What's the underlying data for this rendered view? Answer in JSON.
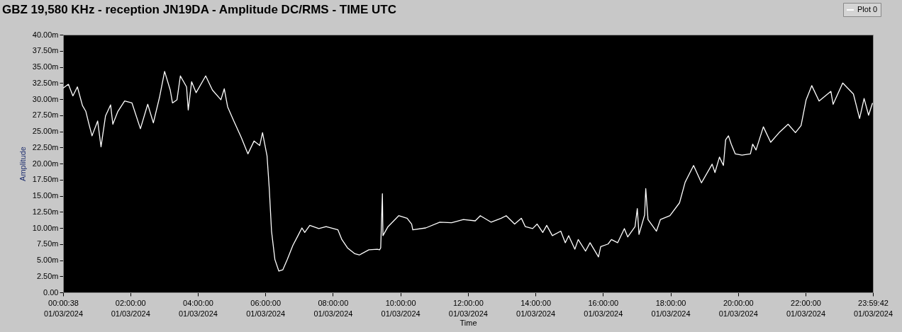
{
  "chart_data": {
    "type": "line",
    "title": "GBZ  19,580 KHz - reception JN19DA -  Amplitude DC/RMS   - TIME UTC",
    "xlabel": "Time",
    "ylabel": "Amplitude",
    "x": [
      "2024-03-01T00:00:38",
      "2024-03-01T00:10",
      "2024-03-01T00:18",
      "2024-03-01T00:26",
      "2024-03-01T00:35",
      "2024-03-01T00:41",
      "2024-03-01T00:46",
      "2024-03-01T00:52",
      "2024-03-01T01:02",
      "2024-03-01T01:08",
      "2024-03-01T01:16",
      "2024-03-01T01:25",
      "2024-03-01T01:29",
      "2024-03-01T01:38",
      "2024-03-01T01:50",
      "2024-03-01T02:03",
      "2024-03-01T02:18",
      "2024-03-01T02:31",
      "2024-03-01T02:41",
      "2024-03-01T02:52",
      "2024-03-01T03:01",
      "2024-03-01T03:11",
      "2024-03-01T03:15",
      "2024-03-01T03:23",
      "2024-03-01T03:29",
      "2024-03-01T03:40",
      "2024-03-01T03:43",
      "2024-03-01T03:49",
      "2024-03-01T03:57",
      "2024-03-01T04:14",
      "2024-03-01T04:26",
      "2024-03-01T04:41",
      "2024-03-01T04:47",
      "2024-03-01T04:53",
      "2024-03-01T05:04",
      "2024-03-01T05:17",
      "2024-03-01T05:29",
      "2024-03-01T05:40",
      "2024-03-01T05:50",
      "2024-03-01T05:55",
      "2024-03-01T06:03",
      "2024-03-01T06:07",
      "2024-03-01T06:11",
      "2024-03-01T06:17",
      "2024-03-01T06:24",
      "2024-03-01T06:31",
      "2024-03-01T06:39",
      "2024-03-01T06:49",
      "2024-03-01T06:58",
      "2024-03-01T07:05",
      "2024-03-01T07:10",
      "2024-03-01T07:19",
      "2024-03-01T07:35",
      "2024-03-01T07:48",
      "2024-03-01T08:09",
      "2024-03-01T08:16",
      "2024-03-01T08:26",
      "2024-03-01T08:39",
      "2024-03-01T08:47",
      "2024-03-01T09:04",
      "2024-03-01T09:19",
      "2024-03-01T09:23",
      "2024-03-01T09:25",
      "2024-03-01T09:28",
      "2024-03-01T09:29",
      "2024-03-01T09:38",
      "2024-03-01T09:57",
      "2024-03-01T10:12",
      "2024-03-01T10:20",
      "2024-03-01T10:22",
      "2024-03-01T10:45",
      "2024-03-01T11:10",
      "2024-03-01T11:31",
      "2024-03-01T11:52",
      "2024-03-01T12:13",
      "2024-03-01T12:22",
      "2024-03-01T12:41",
      "2024-03-01T12:59",
      "2024-03-01T13:08",
      "2024-03-01T13:23",
      "2024-03-01T13:35",
      "2024-03-01T13:42",
      "2024-03-01T13:55",
      "2024-03-01T14:03",
      "2024-03-01T14:13",
      "2024-03-01T14:20",
      "2024-03-01T14:30",
      "2024-03-01T14:45",
      "2024-03-01T14:53",
      "2024-03-01T14:59",
      "2024-03-01T15:10",
      "2024-03-01T15:16",
      "2024-03-01T15:29",
      "2024-03-01T15:37",
      "2024-03-01T15:52",
      "2024-03-01T15:56",
      "2024-03-01T16:09",
      "2024-03-01T16:15",
      "2024-03-01T16:26",
      "2024-03-01T16:38",
      "2024-03-01T16:44",
      "2024-03-01T16:57",
      "2024-03-01T17:01",
      "2024-03-01T17:04",
      "2024-03-01T17:14",
      "2024-03-01T17:16",
      "2024-03-01T17:20",
      "2024-03-01T17:35",
      "2024-03-01T17:42",
      "2024-03-01T17:59",
      "2024-03-01T18:16",
      "2024-03-01T18:26",
      "2024-03-01T18:41",
      "2024-03-01T18:55",
      "2024-03-01T19:14",
      "2024-03-01T19:19",
      "2024-03-01T19:27",
      "2024-03-01T19:34",
      "2024-03-01T19:38",
      "2024-03-01T19:43",
      "2024-03-01T19:48",
      "2024-03-01T19:55",
      "2024-03-01T20:07",
      "2024-03-01T20:22",
      "2024-03-01T20:26",
      "2024-03-01T20:32",
      "2024-03-01T20:45",
      "2024-03-01T20:58",
      "2024-03-01T21:13",
      "2024-03-01T21:29",
      "2024-03-01T21:42",
      "2024-03-01T21:52",
      "2024-03-01T22:01",
      "2024-03-01T22:11",
      "2024-03-01T22:24",
      "2024-03-01T22:45",
      "2024-03-01T22:49",
      "2024-03-01T23:06",
      "2024-03-01T23:25",
      "2024-03-01T23:36",
      "2024-03-01T23:44",
      "2024-03-01T23:52",
      "2024-03-01T23:59"
    ],
    "series": [
      {
        "name": "Plot 0",
        "color": "#ffffff",
        "values": [
          31.7,
          32.3,
          30.5,
          31.9,
          29.0,
          28.1,
          26.3,
          24.3,
          26.6,
          22.6,
          27.4,
          29.1,
          26.1,
          28.1,
          29.7,
          29.4,
          25.4,
          29.2,
          26.3,
          30.3,
          34.3,
          31.4,
          29.4,
          29.9,
          33.6,
          31.9,
          28.3,
          32.7,
          31.0,
          33.6,
          31.4,
          29.9,
          31.6,
          28.8,
          26.6,
          24.1,
          21.5,
          23.5,
          22.8,
          24.8,
          21.2,
          16.1,
          9.5,
          5.1,
          3.3,
          3.5,
          5.1,
          7.3,
          8.8,
          10.0,
          9.3,
          10.4,
          9.9,
          10.2,
          9.7,
          8.2,
          6.9,
          6.0,
          5.8,
          6.6,
          6.7,
          6.6,
          6.9,
          15.3,
          8.8,
          10.2,
          11.9,
          11.5,
          10.6,
          9.7,
          10.0,
          10.9,
          10.8,
          11.3,
          11.1,
          11.9,
          10.9,
          11.5,
          11.9,
          10.6,
          11.5,
          10.2,
          9.9,
          10.6,
          9.3,
          10.4,
          8.8,
          9.5,
          7.7,
          8.8,
          6.7,
          8.2,
          6.4,
          7.7,
          5.5,
          7.1,
          7.5,
          8.2,
          7.7,
          9.9,
          8.6,
          10.2,
          13.0,
          9.0,
          12.0,
          16.1,
          11.3,
          9.5,
          11.3,
          11.9,
          13.9,
          17.1,
          19.7,
          17.0,
          19.9,
          18.6,
          21.0,
          19.7,
          23.7,
          24.3,
          23.0,
          21.5,
          21.3,
          21.5,
          23.0,
          22.1,
          25.7,
          23.3,
          24.8,
          26.1,
          24.8,
          25.9,
          29.9,
          32.1,
          29.7,
          31.2,
          29.2,
          32.5,
          30.8,
          27.0,
          30.1,
          27.5,
          29.4
        ]
      }
    ],
    "xlim": [
      "2024-03-01T00:00:38",
      "2024-03-01T23:59:42"
    ],
    "xticks": [
      {
        "value": "2024-03-01T00:00:38",
        "label": "00:00:38\n01/03/2024"
      },
      {
        "value": "2024-03-01T02:00",
        "label": "02:00:00\n01/03/2024"
      },
      {
        "value": "2024-03-01T04:00",
        "label": "04:00:00\n01/03/2024"
      },
      {
        "value": "2024-03-01T06:00",
        "label": "06:00:00\n01/03/2024"
      },
      {
        "value": "2024-03-01T08:00",
        "label": "08:00:00\n01/03/2024"
      },
      {
        "value": "2024-03-01T10:00",
        "label": "10:00:00\n01/03/2024"
      },
      {
        "value": "2024-03-01T12:00",
        "label": "12:00:00\n01/03/2024"
      },
      {
        "value": "2024-03-01T14:00",
        "label": "14:00:00\n01/03/2024"
      },
      {
        "value": "2024-03-01T16:00",
        "label": "16:00:00\n01/03/2024"
      },
      {
        "value": "2024-03-01T18:00",
        "label": "18:00:00\n01/03/2024"
      },
      {
        "value": "2024-03-01T20:00",
        "label": "20:00:00\n01/03/2024"
      },
      {
        "value": "2024-03-01T22:00",
        "label": "22:00:00\n01/03/2024"
      },
      {
        "value": "2024-03-01T23:59:42",
        "label": "23:59:42\n01/03/2024"
      }
    ],
    "ylim": [
      0,
      40
    ],
    "yticks": [
      {
        "value": 0,
        "label": "0.00"
      },
      {
        "value": 2.5,
        "label": "2.50m"
      },
      {
        "value": 5,
        "label": "5.00m"
      },
      {
        "value": 7.5,
        "label": "7.50m"
      },
      {
        "value": 10,
        "label": "10.00m"
      },
      {
        "value": 12.5,
        "label": "12.50m"
      },
      {
        "value": 15,
        "label": "15.00m"
      },
      {
        "value": 17.5,
        "label": "17.50m"
      },
      {
        "value": 20,
        "label": "20.00m"
      },
      {
        "value": 22.5,
        "label": "22.50m"
      },
      {
        "value": 25,
        "label": "25.00m"
      },
      {
        "value": 27.5,
        "label": "27.50m"
      },
      {
        "value": 30,
        "label": "30.00m"
      },
      {
        "value": 32.5,
        "label": "32.50m"
      },
      {
        "value": 35,
        "label": "35.00m"
      },
      {
        "value": 37.5,
        "label": "37.50m"
      },
      {
        "value": 40,
        "label": "40.00m"
      }
    ],
    "legend": "top right"
  }
}
